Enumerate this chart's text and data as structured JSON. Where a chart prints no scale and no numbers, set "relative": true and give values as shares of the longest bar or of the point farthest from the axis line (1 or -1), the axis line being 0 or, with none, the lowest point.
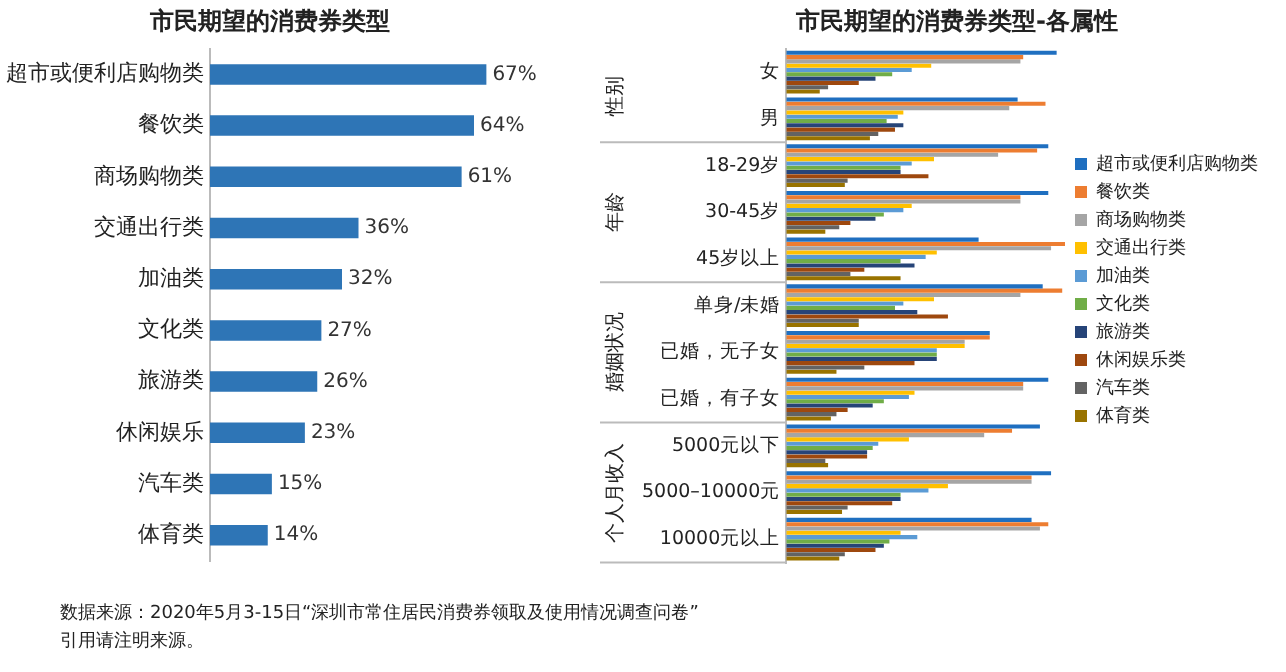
{
  "chart_data": [
    {
      "type": "bar",
      "orientation": "horizontal",
      "title": "市民期望的消费券类型",
      "categories": [
        "超市或便利店购物类",
        "餐饮类",
        "商场购物类",
        "交通出行类",
        "加油类",
        "文化类",
        "旅游类",
        "休闲娱乐",
        "汽车类",
        "体育类"
      ],
      "values": [
        67,
        64,
        61,
        36,
        32,
        27,
        26,
        23,
        15,
        14
      ],
      "value_labels": [
        "67%",
        "64%",
        "61%",
        "36%",
        "32%",
        "27%",
        "26%",
        "23%",
        "15%",
        "14%"
      ],
      "color": "#2e75b6",
      "tick_labels": "y",
      "legend": false,
      "grid": false,
      "annotations": [
        "数据来源：2020年5月3-15日“深圳市常住居民消费券领取及使用情况调查问卷”",
        "引用请注明来源。"
      ]
    },
    {
      "type": "bar",
      "orientation": "horizontal",
      "relative": true,
      "title": "市民期望的消费券类型-各属性",
      "categories": [
        "女",
        "男",
        "18-29岁",
        "30-45岁",
        "45岁以上",
        "单身/未婚",
        "已婚，无子女",
        "已婚，有子女",
        "5000元以下",
        "5000–10000元",
        "10000元以上"
      ],
      "annotations": [
        "性别",
        "年龄",
        "婚姻状况",
        "个人月收入"
      ],
      "legend": "right",
      "grid": false,
      "series": [
        {
          "name": "超市或便利店购物类",
          "color": "#1f6fc0",
          "values": [
            0.97,
            0.83,
            0.94,
            0.94,
            0.69,
            0.92,
            0.73,
            0.94,
            0.91,
            0.95,
            0.88
          ]
        },
        {
          "name": "餐饮类",
          "color": "#ed7d31",
          "values": [
            0.85,
            0.93,
            0.9,
            0.84,
            1,
            0.99,
            0.73,
            0.85,
            0.81,
            0.88,
            0.94
          ]
        },
        {
          "name": "商场购物类",
          "color": "#a5a5a5",
          "values": [
            0.84,
            0.8,
            0.76,
            0.84,
            0.95,
            0.84,
            0.64,
            0.85,
            0.71,
            0.88,
            0.91
          ]
        },
        {
          "name": "交通出行类",
          "color": "#ffc000",
          "values": [
            0.52,
            0.42,
            0.53,
            0.45,
            0.54,
            0.53,
            0.64,
            0.46,
            0.44,
            0.58,
            0.41
          ]
        },
        {
          "name": "加油类",
          "color": "#5b9bd5",
          "values": [
            0.45,
            0.4,
            0.45,
            0.42,
            0.5,
            0.42,
            0.54,
            0.44,
            0.33,
            0.51,
            0.47
          ]
        },
        {
          "name": "文化类",
          "color": "#70ad47",
          "values": [
            0.38,
            0.36,
            0.41,
            0.35,
            0.41,
            0.39,
            0.54,
            0.35,
            0.31,
            0.41,
            0.37
          ]
        },
        {
          "name": "旅游类",
          "color": "#264478",
          "values": [
            0.32,
            0.42,
            0.41,
            0.32,
            0.46,
            0.47,
            0.54,
            0.31,
            0.29,
            0.41,
            0.35
          ]
        },
        {
          "name": "休闲娱乐类",
          "color": "#9e480e",
          "values": [
            0.26,
            0.39,
            0.51,
            0.23,
            0.28,
            0.58,
            0.46,
            0.22,
            0.29,
            0.38,
            0.32
          ]
        },
        {
          "name": "汽车类",
          "color": "#636363",
          "values": [
            0.15,
            0.33,
            0.22,
            0.19,
            0.23,
            0.26,
            0.28,
            0.18,
            0.14,
            0.22,
            0.21
          ]
        },
        {
          "name": "体育类",
          "color": "#997300",
          "values": [
            0.12,
            0.3,
            0.21,
            0.14,
            0.41,
            0.26,
            0.18,
            0.16,
            0.15,
            0.2,
            0.19
          ]
        }
      ]
    }
  ]
}
